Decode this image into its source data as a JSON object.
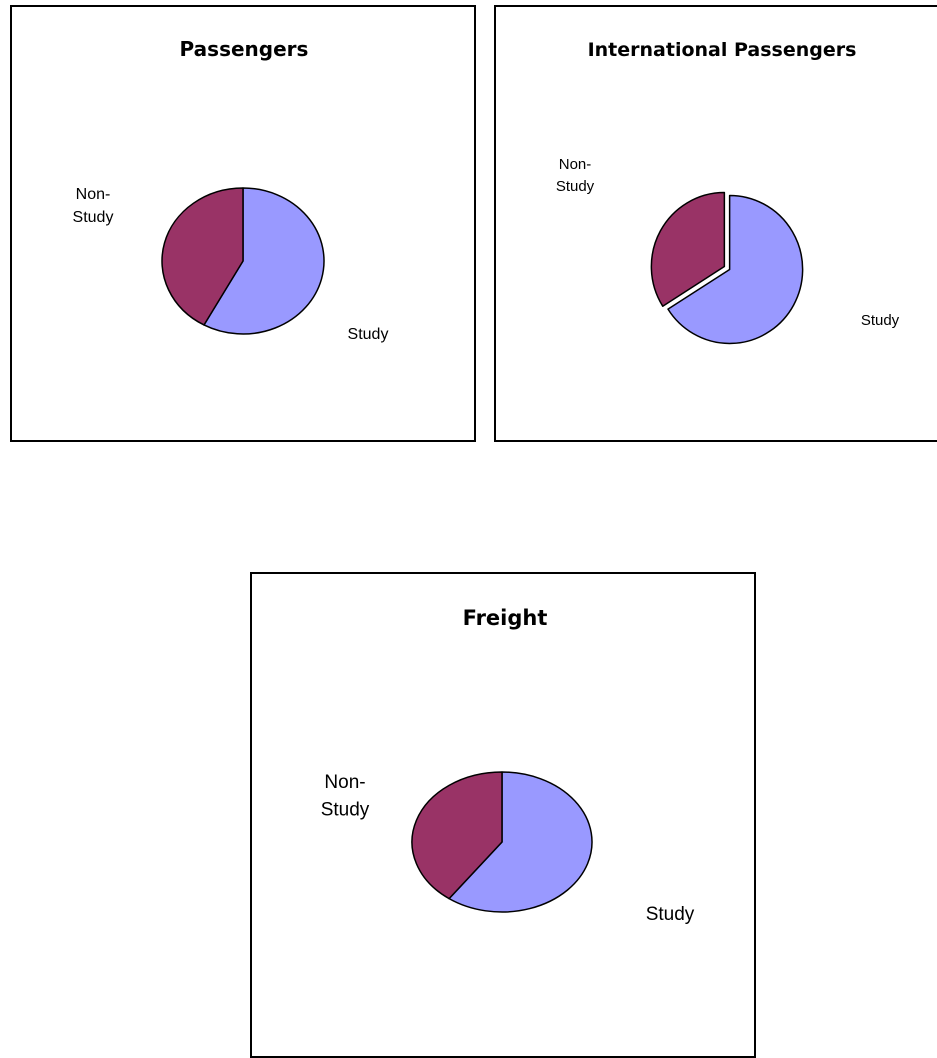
{
  "colors": {
    "study": "#9999ff",
    "non_study": "#993366",
    "outline": "#000000"
  },
  "chart_data": [
    {
      "type": "pie",
      "title": "Passengers",
      "categories": [
        "Study",
        "Non-Study"
      ],
      "values": [
        58,
        42
      ],
      "legend": "none"
    },
    {
      "type": "pie",
      "title": "International Passengers",
      "categories": [
        "Study",
        "Non-Study"
      ],
      "values": [
        66,
        34
      ],
      "legend": "none"
    },
    {
      "type": "pie",
      "title": "Freight",
      "categories": [
        "Study",
        "Non-Study"
      ],
      "values": [
        60,
        40
      ],
      "legend": "none"
    }
  ]
}
